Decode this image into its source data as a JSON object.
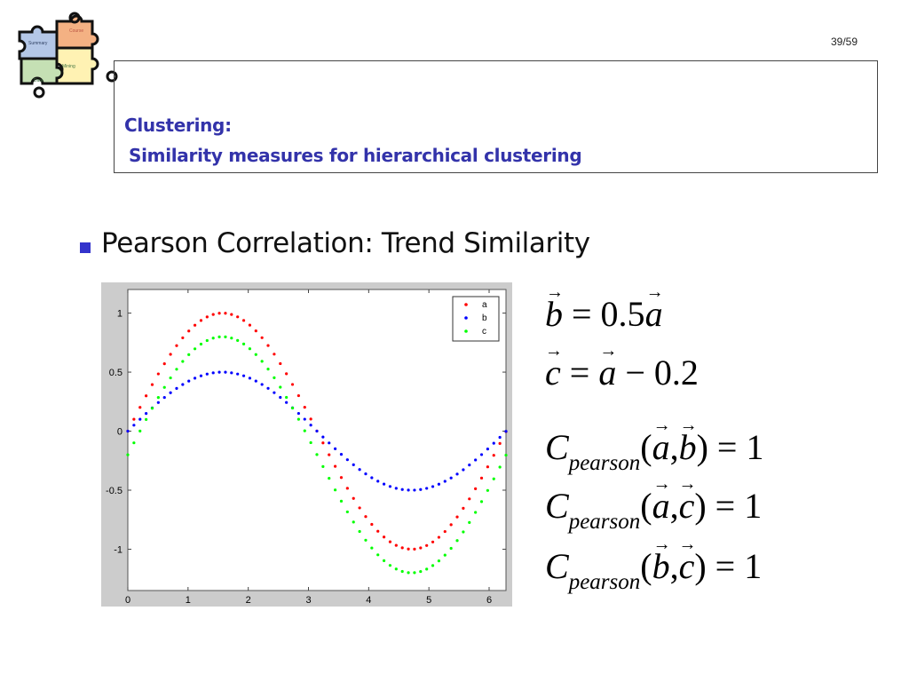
{
  "logo": {
    "pieces": [
      "Course",
      "Summary",
      "Mining",
      "Data"
    ]
  },
  "slide": {
    "page_number": "39/59",
    "title_line1": "Clustering:",
    "title_line2": "Similarity measures for hierarchical clustering",
    "bullet": "Pearson Correlation: Trend Similarity"
  },
  "equations": {
    "eq1": {
      "lhs": "b",
      "rhs": "= 0.5",
      "var": "a"
    },
    "eq2": {
      "lhs": "c",
      "mid": "=",
      "var": "a",
      "rhs": "− 0.2"
    },
    "eq3": {
      "C": "C",
      "sub": "pearson",
      "open": "(",
      "v1": "a",
      "comma": ",",
      "v2": "b",
      "close": ") = 1"
    },
    "eq4": {
      "C": "C",
      "sub": "pearson",
      "open": "(",
      "v1": "a",
      "comma": ",",
      "v2": "c",
      "close": ") = 1"
    },
    "eq5": {
      "C": "C",
      "sub": "pearson",
      "open": "(",
      "v1": "b",
      "comma": ",",
      "v2": "c",
      "close": ") = 1"
    }
  },
  "colors": {
    "title": "#3333aa",
    "bullet": "#3333cc",
    "series_a": "#ff0000",
    "series_b": "#0000ff",
    "series_c": "#00ff00"
  },
  "chart_data": {
    "type": "scatter",
    "xlim": [
      0,
      6.28
    ],
    "ylim": [
      -1.35,
      1.2
    ],
    "xticks": [
      0,
      1,
      2,
      3,
      4,
      5,
      6
    ],
    "yticks": [
      1,
      0.5,
      0,
      -0.5,
      -1
    ],
    "xtick_labels": [
      "0",
      "1",
      "2",
      "3",
      "4",
      "5",
      "6"
    ],
    "ytick_labels": [
      "1",
      "0.5",
      "0",
      "-0.5",
      "-1"
    ],
    "legend_position": "top-right",
    "series": [
      {
        "name": "a",
        "color": "#ff0000",
        "function": "sin(x)",
        "x_range": [
          0,
          6.28
        ],
        "points": 63
      },
      {
        "name": "b",
        "color": "#0000ff",
        "function": "0.5*sin(x)",
        "x_range": [
          0,
          6.28
        ],
        "points": 63
      },
      {
        "name": "c",
        "color": "#00ff00",
        "function": "sin(x)-0.2",
        "x_range": [
          0,
          6.28
        ],
        "points": 63
      }
    ]
  }
}
